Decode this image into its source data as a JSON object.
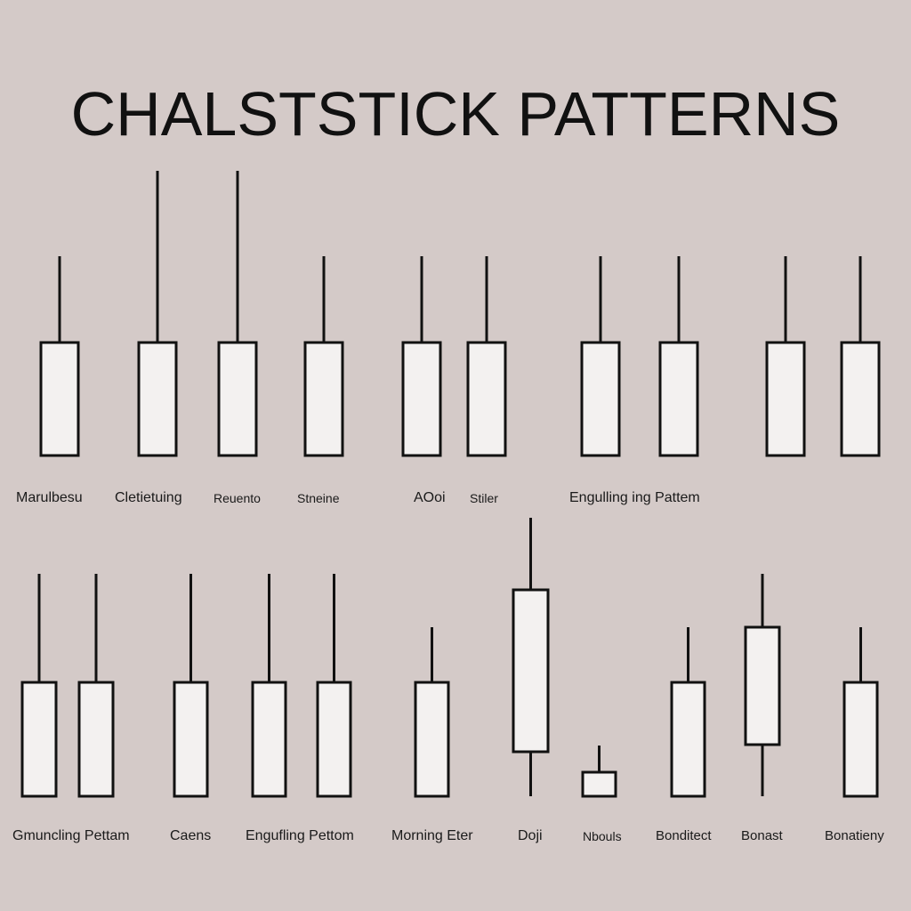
{
  "title": "CHALSTSTICK PATTERNS",
  "colors": {
    "background": "#d4cac8",
    "ink": "#111111",
    "body_fill": "#f3f1f0"
  },
  "rows": [
    {
      "labels": [
        "Marulbesu",
        "Cletietuing",
        "Reuento",
        "Stneine",
        "AOoi",
        "Stiler",
        "Engulling ing Pattem"
      ],
      "candles": [
        {
          "wick_top": 288,
          "body_top": 385,
          "body_bottom": 512,
          "wick_bottom": 512
        },
        {
          "wick_top": 192,
          "body_top": 385,
          "body_bottom": 512,
          "wick_bottom": 512
        },
        {
          "wick_top": 192,
          "body_top": 385,
          "body_bottom": 512,
          "wick_bottom": 512
        },
        {
          "wick_top": 288,
          "body_top": 385,
          "body_bottom": 512,
          "wick_bottom": 512
        },
        {
          "wick_top": 288,
          "body_top": 385,
          "body_bottom": 512,
          "wick_bottom": 512
        },
        {
          "wick_top": 288,
          "body_top": 385,
          "body_bottom": 512,
          "wick_bottom": 512
        },
        {
          "wick_top": 288,
          "body_top": 385,
          "body_bottom": 512,
          "wick_bottom": 512
        },
        {
          "wick_top": 288,
          "body_top": 385,
          "body_bottom": 512,
          "wick_bottom": 512
        },
        {
          "wick_top": 288,
          "body_top": 385,
          "body_bottom": 512,
          "wick_bottom": 512
        },
        {
          "wick_top": 288,
          "body_top": 385,
          "body_bottom": 512,
          "wick_bottom": 512
        }
      ]
    },
    {
      "labels": [
        "Gmuncling Pettam",
        "Caens",
        "Engufling Pettom",
        "Morning Eter",
        "Doji",
        "Nbouls",
        "Bonditect",
        "Bonast",
        "Bonatieny"
      ],
      "candles": [
        {
          "wick_top": 645,
          "body_top": 767,
          "body_bottom": 895,
          "wick_bottom": 895
        },
        {
          "wick_top": 645,
          "body_top": 767,
          "body_bottom": 895,
          "wick_bottom": 895
        },
        {
          "wick_top": 645,
          "body_top": 767,
          "body_bottom": 895,
          "wick_bottom": 895
        },
        {
          "wick_top": 645,
          "body_top": 767,
          "body_bottom": 895,
          "wick_bottom": 895
        },
        {
          "wick_top": 645,
          "body_top": 767,
          "body_bottom": 895,
          "wick_bottom": 895
        },
        {
          "wick_top": 705,
          "body_top": 767,
          "body_bottom": 895,
          "wick_bottom": 895
        },
        {
          "wick_top": 582,
          "body_top": 663,
          "body_bottom": 845,
          "wick_bottom": 895
        },
        {
          "wick_top": 838,
          "body_top": 868,
          "body_bottom": 895,
          "wick_bottom": 895
        },
        {
          "wick_top": 705,
          "body_top": 767,
          "body_bottom": 895,
          "wick_bottom": 895
        },
        {
          "wick_top": 645,
          "body_top": 705,
          "body_bottom": 837,
          "wick_bottom": 895
        },
        {
          "wick_top": 705,
          "body_top": 767,
          "body_bottom": 895,
          "wick_bottom": 895
        }
      ]
    }
  ]
}
